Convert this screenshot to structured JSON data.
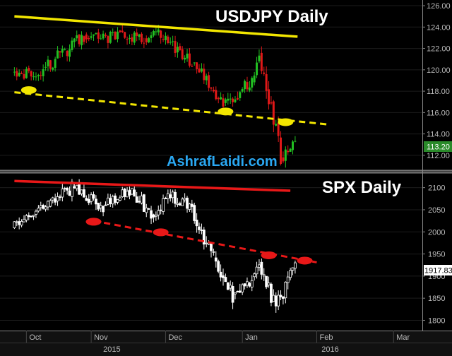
{
  "chart_data": [
    {
      "type": "candlestick",
      "title": "USDJPY Daily",
      "watermark": "AshrafLaidi.com",
      "ylim": [
        110.8,
        126.4
      ],
      "yticks": [
        112,
        114,
        116,
        118,
        120,
        122,
        124,
        126
      ],
      "ytick_labels": [
        "112.00",
        "114.00",
        "116.00",
        "118.00",
        "120.00",
        "122.00",
        "124.00",
        "126.00"
      ],
      "last_price_label": "113.20",
      "last_price": 113.2,
      "colors": {
        "up": "#22c022",
        "down": "#e01818",
        "trendline": "#f2e600",
        "marker": "#f2e600",
        "price_box": "#2a8a2a"
      },
      "segments": [
        {
          "from": 0,
          "to": 10,
          "open": 119.8,
          "close": 119.5,
          "amp": 0.5,
          "seed": 1
        },
        {
          "from": 10,
          "to": 30,
          "open": 119.5,
          "close": 123.2,
          "amp": 0.7,
          "seed": 2
        },
        {
          "from": 30,
          "to": 55,
          "open": 123.2,
          "close": 122.9,
          "amp": 0.6,
          "seed": 3
        },
        {
          "from": 55,
          "to": 60,
          "open": 122.9,
          "close": 123.5,
          "amp": 0.5,
          "seed": 4
        },
        {
          "from": 60,
          "to": 75,
          "open": 123.5,
          "close": 120.7,
          "amp": 0.6,
          "seed": 5
        },
        {
          "from": 75,
          "to": 88,
          "open": 120.7,
          "close": 117.0,
          "amp": 0.6,
          "seed": 6
        },
        {
          "from": 88,
          "to": 100,
          "open": 117.0,
          "close": 118.7,
          "amp": 0.7,
          "seed": 7
        },
        {
          "from": 100,
          "to": 103,
          "open": 118.7,
          "close": 121.5,
          "amp": 0.8,
          "seed": 8
        },
        {
          "from": 103,
          "to": 112,
          "open": 121.5,
          "close": 111.8,
          "amp": 1.0,
          "seed": 9
        },
        {
          "from": 112,
          "to": 118,
          "open": 111.8,
          "close": 113.2,
          "amp": 0.7,
          "seed": 10
        }
      ],
      "trend_top": [
        [
          0,
          125.0
        ],
        [
          118,
          123.1
        ]
      ],
      "trend_bottom": [
        [
          0,
          117.9
        ],
        [
          130,
          114.9
        ]
      ],
      "markers": [
        [
          6,
          118.1
        ],
        [
          88,
          116.1
        ],
        [
          113,
          115.1
        ]
      ]
    },
    {
      "type": "candlestick",
      "title": "SPX Daily",
      "ylim": [
        1780,
        2125
      ],
      "yticks": [
        1800,
        1850,
        1900,
        1950,
        2000,
        2050,
        2100
      ],
      "ytick_labels": [
        "1800",
        "1850",
        "1900",
        "1950",
        "2000",
        "2050",
        "2100"
      ],
      "last_price_label": "1917.83",
      "last_price": 1917.83,
      "colors": {
        "candle": "#ffffff",
        "trendline": "#e81818",
        "marker": "#e81818",
        "price_box": "#ffffff"
      },
      "segments": [
        {
          "from": 0,
          "to": 15,
          "open": 2010,
          "close": 2060,
          "amp": 12,
          "seed": 11
        },
        {
          "from": 15,
          "to": 25,
          "open": 2060,
          "close": 2100,
          "amp": 14,
          "seed": 12
        },
        {
          "from": 25,
          "to": 38,
          "open": 2100,
          "close": 2060,
          "amp": 15,
          "seed": 13
        },
        {
          "from": 38,
          "to": 50,
          "open": 2060,
          "close": 2095,
          "amp": 12,
          "seed": 14
        },
        {
          "from": 50,
          "to": 58,
          "open": 2095,
          "close": 2040,
          "amp": 15,
          "seed": 15
        },
        {
          "from": 58,
          "to": 66,
          "open": 2040,
          "close": 2080,
          "amp": 14,
          "seed": 16
        },
        {
          "from": 66,
          "to": 74,
          "open": 2080,
          "close": 2060,
          "amp": 15,
          "seed": 17
        },
        {
          "from": 74,
          "to": 84,
          "open": 2060,
          "close": 1940,
          "amp": 18,
          "seed": 18
        },
        {
          "from": 84,
          "to": 92,
          "open": 1940,
          "close": 1860,
          "amp": 20,
          "seed": 19
        },
        {
          "from": 92,
          "to": 100,
          "open": 1860,
          "close": 1900,
          "amp": 18,
          "seed": 20
        },
        {
          "from": 100,
          "to": 103,
          "open": 1900,
          "close": 1935,
          "amp": 14,
          "seed": 21
        },
        {
          "from": 103,
          "to": 110,
          "open": 1935,
          "close": 1830,
          "amp": 20,
          "seed": 22
        },
        {
          "from": 110,
          "to": 118,
          "open": 1830,
          "close": 1918,
          "amp": 18,
          "seed": 23
        }
      ],
      "trend_top": [
        [
          0,
          2115
        ],
        [
          115,
          2093
        ]
      ],
      "trend_bottom": [
        [
          33,
          2025
        ],
        [
          126,
          1931
        ]
      ],
      "markers": [
        [
          33,
          2023
        ],
        [
          61,
          1999
        ],
        [
          106,
          1947
        ],
        [
          121,
          1935
        ]
      ]
    }
  ],
  "x_axis": {
    "months": [
      {
        "label": "Oct",
        "x": 5
      },
      {
        "label": "Nov",
        "x": 32
      },
      {
        "label": "Dec",
        "x": 63
      },
      {
        "label": "Jan",
        "x": 95
      },
      {
        "label": "Feb",
        "x": 126
      },
      {
        "label": "Mar",
        "x": 158
      }
    ],
    "years": [
      {
        "label": "2015",
        "x": 37
      },
      {
        "label": "2016",
        "x": 128
      }
    ],
    "x_range": [
      -6,
      170
    ]
  }
}
